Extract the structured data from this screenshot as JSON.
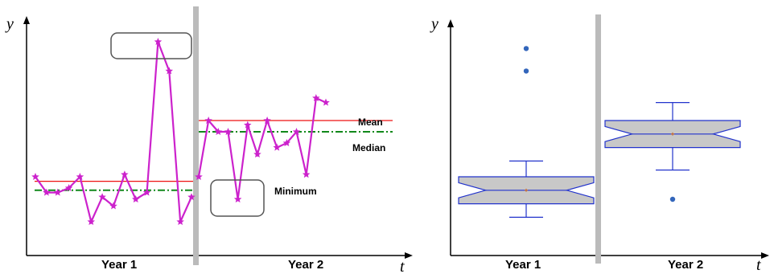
{
  "colors": {
    "series": "#cc22cc",
    "mean_line": "#ee1111",
    "median_line": "#11881a",
    "divider": "#bbbbbb",
    "box_fill": "#c8c8c8",
    "box_stroke": "#2233cc",
    "outlier": "#3366bb",
    "mean_marker": "#cc6622"
  },
  "left_panel": {
    "y_axis_label": "y",
    "x_axis_label": "t",
    "year1_label": "Year 1",
    "year2_label": "Year 2",
    "mean_label": "Mean",
    "median_label": "Median",
    "minimum_label": "Minimum",
    "year1": {
      "mean": 0.33,
      "median": 0.29,
      "series": [
        0.35,
        0.28,
        0.28,
        0.3,
        0.35,
        0.15,
        0.26,
        0.22,
        0.36,
        0.25,
        0.28,
        0.95,
        0.82,
        0.15,
        0.26
      ]
    },
    "year2": {
      "mean": 0.6,
      "median": 0.55,
      "series": [
        0.35,
        0.6,
        0.55,
        0.55,
        0.25,
        0.58,
        0.45,
        0.6,
        0.48,
        0.5,
        0.55,
        0.36,
        0.7,
        0.68
      ]
    }
  },
  "right_panel": {
    "y_axis_label": "y",
    "x_axis_label": "t",
    "year1_label": "Year 1",
    "year2_label": "Year 2",
    "year1_box": {
      "min": 0.17,
      "q1": 0.23,
      "median": 0.29,
      "q3": 0.35,
      "max": 0.42,
      "mean": 0.29,
      "outliers": [
        0.82,
        0.92
      ]
    },
    "year2_box": {
      "min": 0.38,
      "q1": 0.48,
      "median": 0.54,
      "q3": 0.6,
      "max": 0.68,
      "mean": 0.54,
      "outliers": [
        0.25
      ]
    }
  }
}
